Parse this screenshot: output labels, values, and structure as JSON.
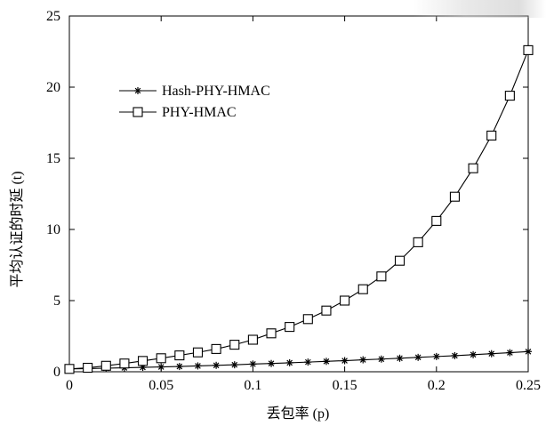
{
  "chart_data": {
    "type": "line",
    "title": "",
    "xlabel": "丢包率 (p)",
    "ylabel": "平均认证的时延 (t)",
    "xlim": [
      0,
      0.25
    ],
    "ylim": [
      0,
      25
    ],
    "xticks": [
      0,
      0.05,
      0.1,
      0.15,
      0.2,
      0.25
    ],
    "yticks": [
      0,
      5,
      10,
      15,
      20,
      25
    ],
    "xtick_labels": [
      "0",
      "0.05",
      "0.1",
      "0.15",
      "0.2",
      "0.25"
    ],
    "ytick_labels": [
      "0",
      "5",
      "10",
      "15",
      "20",
      "25"
    ],
    "grid": false,
    "legend_position": "upper-left",
    "x": [
      0,
      0.01,
      0.02,
      0.03,
      0.04,
      0.05,
      0.06,
      0.07,
      0.08,
      0.09,
      0.1,
      0.11,
      0.12,
      0.13,
      0.14,
      0.15,
      0.16,
      0.17,
      0.18,
      0.19,
      0.2,
      0.21,
      0.22,
      0.23,
      0.24,
      0.25
    ],
    "series": [
      {
        "name": "Hash-PHY-HMAC",
        "marker": "star",
        "color": "#000000",
        "values": [
          0.2,
          0.22,
          0.25,
          0.28,
          0.31,
          0.34,
          0.37,
          0.41,
          0.45,
          0.49,
          0.54,
          0.58,
          0.63,
          0.68,
          0.73,
          0.78,
          0.84,
          0.89,
          0.95,
          1.01,
          1.07,
          1.13,
          1.2,
          1.27,
          1.34,
          1.42
        ]
      },
      {
        "name": "PHY-HMAC",
        "marker": "square",
        "color": "#000000",
        "values": [
          0.2,
          0.28,
          0.42,
          0.58,
          0.76,
          0.95,
          1.15,
          1.36,
          1.6,
          1.9,
          2.25,
          2.7,
          3.15,
          3.7,
          4.3,
          5.0,
          5.8,
          6.7,
          7.8,
          9.1,
          10.6,
          12.3,
          14.3,
          16.6,
          19.4,
          22.6
        ]
      }
    ]
  }
}
